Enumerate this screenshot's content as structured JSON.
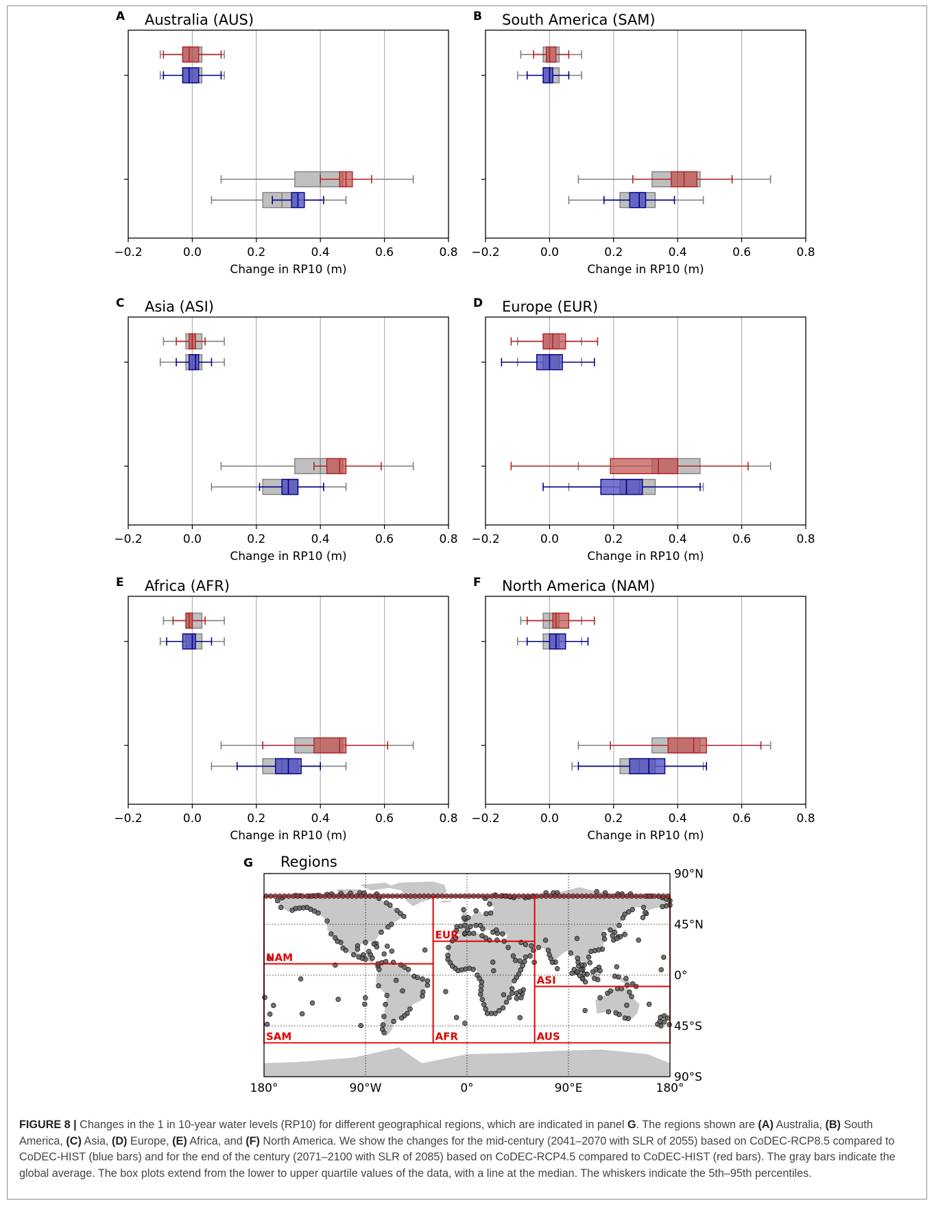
{
  "figure": {
    "colors": {
      "red": "#b22222",
      "red_fill": "#c0504d",
      "blue": "#00008b",
      "blue_fill": "#3f3fbf",
      "gray": "#808080",
      "gray_fill": "#b4b4b4",
      "gridline": "#b0b0b0"
    }
  },
  "chart_data": [
    {
      "panel": "A",
      "title": "Australia (AUS)",
      "type": "boxplot-horizontal",
      "xlabel": "Change in RP10 (m)",
      "xlim": [
        -0.2,
        0.8
      ],
      "xticks": [
        "−0.2",
        "0.0",
        "0.2",
        "0.4",
        "0.6",
        "0.8"
      ],
      "grid": "vertical",
      "rows": [
        {
          "group": "RCP4.5 vs HIST (red)",
          "level": 1,
          "gray": {
            "whislo": -0.1,
            "q1": -0.03,
            "med": 0.0,
            "q3": 0.03,
            "whishi": 0.1
          },
          "color": {
            "whislo": -0.09,
            "q1": -0.03,
            "med": -0.01,
            "q3": 0.02,
            "whishi": 0.09
          }
        },
        {
          "group": "RCP8.5 vs HIST (blue)",
          "level": 1,
          "gray": {
            "whislo": -0.1,
            "q1": -0.03,
            "med": 0.0,
            "q3": 0.03,
            "whishi": 0.1
          },
          "color": {
            "whislo": -0.09,
            "q1": -0.03,
            "med": -0.01,
            "q3": 0.02,
            "whishi": 0.09
          }
        },
        {
          "group": "RCP4.5 vs HIST (red)",
          "level": 2,
          "gray": {
            "whislo": 0.09,
            "q1": 0.32,
            "med": 0.4,
            "q3": 0.47,
            "whishi": 0.69
          },
          "color": {
            "whislo": 0.4,
            "q1": 0.46,
            "med": 0.48,
            "q3": 0.5,
            "whishi": 0.56
          }
        },
        {
          "group": "RCP8.5 vs HIST (blue)",
          "level": 2,
          "gray": {
            "whislo": 0.06,
            "q1": 0.22,
            "med": 0.28,
            "q3": 0.33,
            "whishi": 0.48
          },
          "color": {
            "whislo": 0.25,
            "q1": 0.31,
            "med": 0.33,
            "q3": 0.35,
            "whishi": 0.41
          }
        }
      ]
    },
    {
      "panel": "B",
      "title": "South America (SAM)",
      "type": "boxplot-horizontal",
      "xlabel": "Change in RP10 (m)",
      "xlim": [
        -0.2,
        0.8
      ],
      "xticks": [
        "−0.2",
        "0.0",
        "0.2",
        "0.4",
        "0.6",
        "0.8"
      ],
      "grid": "vertical",
      "rows": [
        {
          "group": "RCP4.5 vs HIST (red)",
          "level": 1,
          "gray": {
            "whislo": -0.09,
            "q1": -0.02,
            "med": 0.0,
            "q3": 0.03,
            "whishi": 0.1
          },
          "color": {
            "whislo": -0.05,
            "q1": -0.01,
            "med": 0.0,
            "q3": 0.02,
            "whishi": 0.06
          }
        },
        {
          "group": "RCP8.5 vs HIST (blue)",
          "level": 1,
          "gray": {
            "whislo": -0.1,
            "q1": -0.02,
            "med": 0.0,
            "q3": 0.03,
            "whishi": 0.1
          },
          "color": {
            "whislo": -0.07,
            "q1": -0.02,
            "med": 0.0,
            "q3": 0.01,
            "whishi": 0.06
          }
        },
        {
          "group": "RCP4.5 vs HIST (red)",
          "level": 2,
          "gray": {
            "whislo": 0.09,
            "q1": 0.32,
            "med": 0.4,
            "q3": 0.47,
            "whishi": 0.69
          },
          "color": {
            "whislo": 0.26,
            "q1": 0.38,
            "med": 0.42,
            "q3": 0.46,
            "whishi": 0.57
          }
        },
        {
          "group": "RCP8.5 vs HIST (blue)",
          "level": 2,
          "gray": {
            "whislo": 0.06,
            "q1": 0.22,
            "med": 0.28,
            "q3": 0.33,
            "whishi": 0.48
          },
          "color": {
            "whislo": 0.17,
            "q1": 0.25,
            "med": 0.28,
            "q3": 0.3,
            "whishi": 0.39
          }
        }
      ]
    },
    {
      "panel": "C",
      "title": "Asia (ASI)",
      "type": "boxplot-horizontal",
      "xlabel": "Change in RP10 (m)",
      "xlim": [
        -0.2,
        0.8
      ],
      "xticks": [
        "−0.2",
        "0.0",
        "0.2",
        "0.4",
        "0.6",
        "0.8"
      ],
      "grid": "vertical",
      "rows": [
        {
          "group": "RCP4.5 vs HIST (red)",
          "level": 1,
          "gray": {
            "whislo": -0.09,
            "q1": -0.02,
            "med": 0.0,
            "q3": 0.03,
            "whishi": 0.1
          },
          "color": {
            "whislo": -0.05,
            "q1": -0.01,
            "med": 0.0,
            "q3": 0.01,
            "whishi": 0.04
          }
        },
        {
          "group": "RCP8.5 vs HIST (blue)",
          "level": 1,
          "gray": {
            "whislo": -0.1,
            "q1": -0.02,
            "med": 0.0,
            "q3": 0.03,
            "whishi": 0.1
          },
          "color": {
            "whislo": -0.05,
            "q1": -0.01,
            "med": 0.01,
            "q3": 0.02,
            "whishi": 0.06
          }
        },
        {
          "group": "RCP4.5 vs HIST (red)",
          "level": 2,
          "gray": {
            "whislo": 0.09,
            "q1": 0.32,
            "med": 0.4,
            "q3": 0.47,
            "whishi": 0.69
          },
          "color": {
            "whislo": 0.38,
            "q1": 0.42,
            "med": 0.46,
            "q3": 0.48,
            "whishi": 0.59
          }
        },
        {
          "group": "RCP8.5 vs HIST (blue)",
          "level": 2,
          "gray": {
            "whislo": 0.06,
            "q1": 0.22,
            "med": 0.28,
            "q3": 0.33,
            "whishi": 0.48
          },
          "color": {
            "whislo": 0.21,
            "q1": 0.28,
            "med": 0.3,
            "q3": 0.33,
            "whishi": 0.41
          }
        }
      ]
    },
    {
      "panel": "D",
      "title": "Europe (EUR)",
      "type": "boxplot-horizontal",
      "xlabel": "Change in RP10 (m)",
      "xlim": [
        -0.2,
        0.8
      ],
      "xticks": [
        "−0.2",
        "0.0",
        "0.2",
        "0.4",
        "0.6",
        "0.8"
      ],
      "grid": "vertical",
      "rows": [
        {
          "group": "RCP4.5 vs HIST (red)",
          "level": 1,
          "gray": {
            "whislo": -0.1,
            "q1": -0.02,
            "med": 0.0,
            "q3": 0.03,
            "whishi": 0.1
          },
          "color": {
            "whislo": -0.12,
            "q1": -0.02,
            "med": 0.01,
            "q3": 0.05,
            "whishi": 0.15
          }
        },
        {
          "group": "RCP8.5 vs HIST (blue)",
          "level": 1,
          "gray": {
            "whislo": -0.1,
            "q1": -0.02,
            "med": 0.0,
            "q3": 0.03,
            "whishi": 0.1
          },
          "color": {
            "whislo": -0.15,
            "q1": -0.04,
            "med": 0.0,
            "q3": 0.04,
            "whishi": 0.14
          }
        },
        {
          "group": "RCP4.5 vs HIST (red)",
          "level": 2,
          "gray": {
            "whislo": 0.09,
            "q1": 0.32,
            "med": 0.4,
            "q3": 0.47,
            "whishi": 0.69
          },
          "color": {
            "whislo": -0.12,
            "q1": 0.19,
            "med": 0.34,
            "q3": 0.4,
            "whishi": 0.62
          }
        },
        {
          "group": "RCP8.5 vs HIST (blue)",
          "level": 2,
          "gray": {
            "whislo": 0.06,
            "q1": 0.22,
            "med": 0.28,
            "q3": 0.33,
            "whishi": 0.48
          },
          "color": {
            "whislo": -0.02,
            "q1": 0.16,
            "med": 0.24,
            "q3": 0.29,
            "whishi": 0.47
          }
        }
      ]
    },
    {
      "panel": "E",
      "title": "Africa (AFR)",
      "type": "boxplot-horizontal",
      "xlabel": "Change in RP10 (m)",
      "xlim": [
        -0.2,
        0.8
      ],
      "xticks": [
        "−0.2",
        "0.0",
        "0.2",
        "0.4",
        "0.6",
        "0.8"
      ],
      "grid": "vertical",
      "rows": [
        {
          "group": "RCP4.5 vs HIST (red)",
          "level": 1,
          "gray": {
            "whislo": -0.09,
            "q1": -0.02,
            "med": 0.0,
            "q3": 0.03,
            "whishi": 0.1
          },
          "color": {
            "whislo": -0.06,
            "q1": -0.02,
            "med": -0.01,
            "q3": 0.0,
            "whishi": 0.04
          }
        },
        {
          "group": "RCP8.5 vs HIST (blue)",
          "level": 1,
          "gray": {
            "whislo": -0.1,
            "q1": -0.02,
            "med": 0.0,
            "q3": 0.03,
            "whishi": 0.1
          },
          "color": {
            "whislo": -0.08,
            "q1": -0.03,
            "med": 0.0,
            "q3": 0.01,
            "whishi": 0.06
          }
        },
        {
          "group": "RCP4.5 vs HIST (red)",
          "level": 2,
          "gray": {
            "whislo": 0.09,
            "q1": 0.32,
            "med": 0.4,
            "q3": 0.47,
            "whishi": 0.69
          },
          "color": {
            "whislo": 0.22,
            "q1": 0.38,
            "med": 0.46,
            "q3": 0.48,
            "whishi": 0.61
          }
        },
        {
          "group": "RCP8.5 vs HIST (blue)",
          "level": 2,
          "gray": {
            "whislo": 0.06,
            "q1": 0.22,
            "med": 0.28,
            "q3": 0.33,
            "whishi": 0.48
          },
          "color": {
            "whislo": 0.14,
            "q1": 0.26,
            "med": 0.3,
            "q3": 0.34,
            "whishi": 0.4
          }
        }
      ]
    },
    {
      "panel": "F",
      "title": "North America (NAM)",
      "type": "boxplot-horizontal",
      "xlabel": "Change in RP10 (m)",
      "xlim": [
        -0.2,
        0.8
      ],
      "xticks": [
        "−0.2",
        "0.0",
        "0.2",
        "0.4",
        "0.6",
        "0.8"
      ],
      "grid": "vertical",
      "rows": [
        {
          "group": "RCP4.5 vs HIST (red)",
          "level": 1,
          "gray": {
            "whislo": -0.09,
            "q1": -0.02,
            "med": 0.0,
            "q3": 0.03,
            "whishi": 0.1
          },
          "color": {
            "whislo": -0.07,
            "q1": 0.01,
            "med": 0.02,
            "q3": 0.06,
            "whishi": 0.14
          }
        },
        {
          "group": "RCP8.5 vs HIST (blue)",
          "level": 1,
          "gray": {
            "whislo": -0.1,
            "q1": -0.02,
            "med": 0.0,
            "q3": 0.03,
            "whishi": 0.1
          },
          "color": {
            "whislo": -0.07,
            "q1": 0.0,
            "med": 0.02,
            "q3": 0.05,
            "whishi": 0.12
          }
        },
        {
          "group": "RCP4.5 vs HIST (red)",
          "level": 2,
          "gray": {
            "whislo": 0.09,
            "q1": 0.32,
            "med": 0.4,
            "q3": 0.47,
            "whishi": 0.69
          },
          "color": {
            "whislo": 0.19,
            "q1": 0.37,
            "med": 0.45,
            "q3": 0.49,
            "whishi": 0.66
          }
        },
        {
          "group": "RCP8.5 vs HIST (blue)",
          "level": 2,
          "gray": {
            "whislo": 0.07,
            "q1": 0.22,
            "med": 0.28,
            "q3": 0.33,
            "whishi": 0.48
          },
          "color": {
            "whislo": 0.09,
            "q1": 0.25,
            "med": 0.31,
            "q3": 0.36,
            "whishi": 0.49
          }
        }
      ]
    },
    {
      "panel": "G",
      "title": "Regions",
      "type": "map",
      "xticks": [
        "180°",
        "90°W",
        "0°",
        "90°E",
        "180°"
      ],
      "yticks": [
        "90°N",
        "45°N",
        "0°",
        "45°S",
        "90°S"
      ],
      "xlim": [
        -180,
        180
      ],
      "ylim": [
        -90,
        90
      ],
      "regions": [
        {
          "label": "NAM",
          "lon": [
            -180,
            -30
          ],
          "lat": [
            10,
            70
          ]
        },
        {
          "label": "SAM",
          "lon": [
            -180,
            -30
          ],
          "lat": [
            -60,
            10
          ]
        },
        {
          "label": "EUR",
          "lon": [
            -30,
            60
          ],
          "lat": [
            30,
            70
          ]
        },
        {
          "label": "AFR",
          "lon": [
            -30,
            60
          ],
          "lat": [
            -60,
            30
          ]
        },
        {
          "label": "ASI",
          "lon": [
            60,
            180
          ],
          "lat": [
            -10,
            70
          ]
        },
        {
          "label": "AUS",
          "lon": [
            60,
            180
          ],
          "lat": [
            -60,
            -10
          ]
        }
      ]
    }
  ],
  "caption": {
    "label": "FIGURE 8 |",
    "p1": " Changes in the 1 in 10-year water levels (RP10) for different geographical regions, which are indicated in panel ",
    "g": "G",
    "p2": ". The regions shown are ",
    "a": "(A)",
    "p3": " Australia, ",
    "b": "(B)",
    "p4": " South America, ",
    "c": "(C)",
    "p5": " Asia, ",
    "d": "(D)",
    "p6": " Europe, ",
    "e": "(E)",
    "p7": " Africa, and ",
    "f": "(F)",
    "p8": " North America. We show the changes for the mid-century (2041–2070 with SLR of 2055) based on CoDEC-RCP8.5 compared to CoDEC-HIST (blue bars) and for the end of the century (2071–2100 with SLR of 2085) based on CoDEC-RCP4.5 compared to CoDEC-HIST (red bars). The gray bars indicate the global average. The box plots extend from the lower to upper quartile values of the data, with a line at the median. The whiskers indicate the 5th–95th percentiles."
  }
}
